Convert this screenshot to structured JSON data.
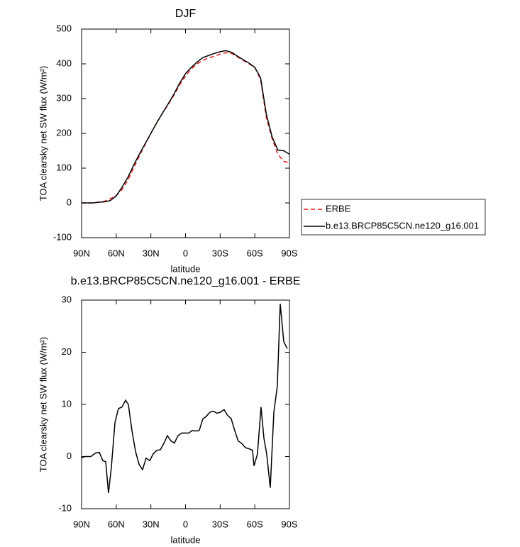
{
  "chart_data": [
    {
      "type": "line",
      "title": "DJF",
      "xlabel": "latitude",
      "ylabel": "TOA clearsky net SW flux (W/m²)",
      "x": [
        90,
        85,
        80,
        75,
        70,
        65,
        60,
        55,
        50,
        45,
        40,
        35,
        30,
        25,
        20,
        15,
        10,
        5,
        0,
        -5,
        -10,
        -15,
        -20,
        -25,
        -30,
        -35,
        -40,
        -45,
        -50,
        -55,
        -60,
        -65,
        -70,
        -75,
        -80,
        -85,
        -90
      ],
      "series": [
        {
          "name": "ERBE",
          "color": "#e41a1c",
          "style": "dashed",
          "values": [
            0,
            0,
            0,
            2,
            5,
            12,
            22,
            38,
            65,
            100,
            135,
            168,
            200,
            230,
            258,
            283,
            310,
            340,
            365,
            385,
            400,
            410,
            417,
            422,
            428,
            432,
            430,
            420,
            410,
            400,
            390,
            355,
            245,
            185,
            140,
            120,
            115
          ]
        },
        {
          "name": "b.e13.BRCP85C5CN.ne120_g16.001",
          "color": "#000000",
          "style": "solid",
          "values": [
            0,
            0,
            0,
            2,
            3,
            7,
            20,
            45,
            73,
            108,
            140,
            170,
            200,
            230,
            258,
            285,
            313,
            345,
            372,
            390,
            405,
            418,
            424,
            430,
            435,
            438,
            433,
            422,
            412,
            402,
            390,
            360,
            255,
            190,
            152,
            150,
            140
          ]
        }
      ],
      "xlim": [
        90,
        -90
      ],
      "xticks": [
        {
          "value": 90,
          "label": "90N"
        },
        {
          "value": 60,
          "label": "60N"
        },
        {
          "value": 30,
          "label": "30N"
        },
        0,
        {
          "value": -30,
          "label": "30S"
        },
        {
          "value": -60,
          "label": "60S"
        },
        {
          "value": -90,
          "label": "90S"
        }
      ],
      "ylim": [
        -100,
        500
      ],
      "yticks": [
        -100,
        0,
        100,
        200,
        300,
        400,
        500
      ],
      "grid": false,
      "legend": "outside-right"
    },
    {
      "type": "line",
      "title": "b.e13.BRCP85C5CN.ne120_g16.001 - ERBE",
      "xlabel": "latitude",
      "ylabel": "TOA clearsky net SW flux (W/m²)",
      "x": [
        90,
        86.9,
        82.0,
        77.7,
        74.6,
        71.6,
        69.1,
        66.7,
        64.2,
        61.1,
        58.1,
        55.0,
        51.9,
        49.5,
        46.4,
        43.3,
        40.2,
        37.2,
        34.1,
        31.0,
        28.0,
        24.9,
        21.8,
        18.8,
        15.7,
        12.6,
        9.6,
        6.5,
        3.4,
        0.4,
        -2.7,
        -5.8,
        -8.8,
        -11.9,
        -15.0,
        -18.0,
        -21.1,
        -24.2,
        -27.2,
        -30.3,
        -33.4,
        -36.4,
        -39.5,
        -42.6,
        -45.6,
        -48.8,
        -51.9,
        -54.9,
        -58.0,
        -59.3,
        -62.3,
        -65.4,
        -67.9,
        -70.3,
        -73.4,
        -76.5,
        -79.5,
        -82.0,
        -85.1,
        -88.1
      ],
      "series": [
        {
          "color": "#000000",
          "style": "solid",
          "values": [
            -0.2,
            0,
            0,
            0.7,
            0.8,
            -0.8,
            -1,
            -7,
            -2,
            6.5,
            9.2,
            9.5,
            10.8,
            10,
            5,
            1,
            -1.5,
            -2.5,
            -0.3,
            -0.8,
            0.5,
            1.2,
            1.3,
            2.5,
            4,
            3,
            2.6,
            4,
            4.5,
            4.5,
            4.5,
            5,
            4.9,
            5,
            7.2,
            7.7,
            8.5,
            8.7,
            8.3,
            8.5,
            9,
            7.9,
            7.3,
            5,
            3,
            2.5,
            1.7,
            1.5,
            1.2,
            -1.8,
            0.5,
            9.5,
            3.5,
            0.5,
            -6,
            8.5,
            13.5,
            29.3,
            22,
            20.7
          ]
        }
      ],
      "xlim": [
        90,
        -90
      ],
      "xticks": [
        {
          "value": 90,
          "label": "90N"
        },
        {
          "value": 60,
          "label": "60N"
        },
        {
          "value": 30,
          "label": "30N"
        },
        0,
        {
          "value": -30,
          "label": "30S"
        },
        {
          "value": -60,
          "label": "60S"
        },
        {
          "value": -90,
          "label": "90S"
        }
      ],
      "ylim": [
        -10,
        30
      ],
      "yticks": [
        -10,
        0,
        10,
        20,
        30
      ],
      "grid": false
    }
  ]
}
